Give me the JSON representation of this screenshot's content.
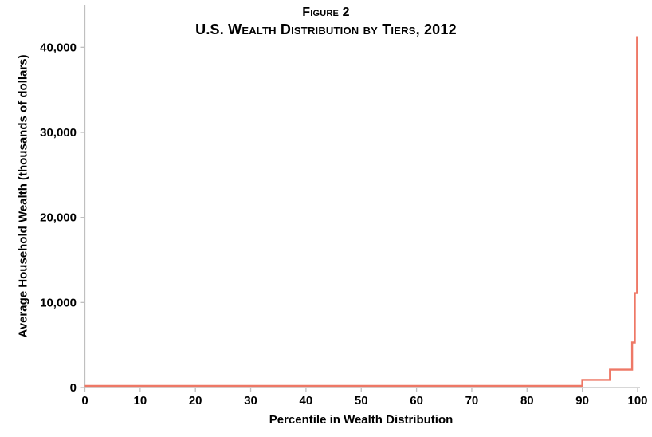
{
  "figure": {
    "title_line1": "Figure 2",
    "title_line2": "U.S. Wealth Distribution by Tiers, 2012"
  },
  "chart_data": {
    "type": "line",
    "line_style": "step",
    "title": "Figure 2",
    "subtitle": "U.S. Wealth Distribution by Tiers, 2012",
    "xlabel": "Percentile in Wealth Distribution",
    "ylabel": "Average Household Wealth (thousands of dollars)",
    "xlim": [
      0,
      100
    ],
    "ylim": [
      0,
      45000
    ],
    "x_ticks": [
      0,
      10,
      20,
      30,
      40,
      50,
      60,
      70,
      80,
      90,
      100
    ],
    "x_tick_labels": [
      "0",
      "10",
      "20",
      "30",
      "40",
      "50",
      "60",
      "70",
      "80",
      "90",
      "100"
    ],
    "y_ticks": [
      0,
      10000,
      20000,
      30000,
      40000
    ],
    "y_tick_labels": [
      "0",
      "10,000",
      "20,000",
      "30,000",
      "40,000"
    ],
    "grid": false,
    "legend": "none",
    "line_color": "#EE7866",
    "axis_color": "#BFBFBF",
    "text_color": "#000000",
    "points": [
      [
        0,
        200
      ],
      [
        90,
        200
      ],
      [
        90,
        900
      ],
      [
        95,
        900
      ],
      [
        95,
        2100
      ],
      [
        99,
        2100
      ],
      [
        99,
        5300
      ],
      [
        99.5,
        5300
      ],
      [
        99.5,
        11100
      ],
      [
        99.9,
        11100
      ],
      [
        99.9,
        41300
      ]
    ],
    "tiers": [
      {
        "percentile_range": "0-90",
        "avg_wealth_thousands": 200
      },
      {
        "percentile_range": "90-95",
        "avg_wealth_thousands": 900
      },
      {
        "percentile_range": "95-99",
        "avg_wealth_thousands": 2100
      },
      {
        "percentile_range": "99-99.5",
        "avg_wealth_thousands": 5300
      },
      {
        "percentile_range": "99.5-99.9",
        "avg_wealth_thousands": 11100
      },
      {
        "percentile_range": "99.9-100",
        "avg_wealth_thousands": 41300
      }
    ]
  }
}
